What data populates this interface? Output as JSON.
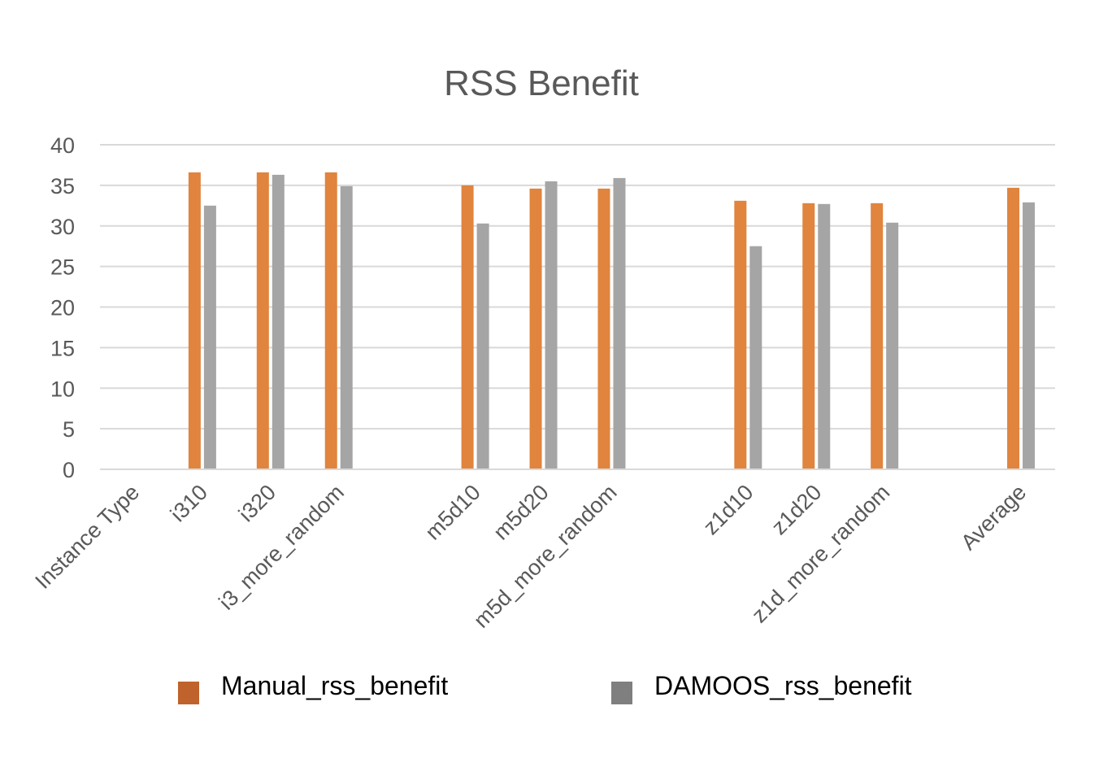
{
  "chart_data": {
    "type": "bar",
    "title": "RSS Benefit",
    "categories": [
      "Instance Type",
      "i310",
      "i320",
      "i3_more_random",
      "",
      "m5d10",
      "m5d20",
      "m5d_more_random",
      "",
      "z1d10",
      "z1d20",
      "z1d_more_random",
      "",
      "Average"
    ],
    "series": [
      {
        "name": "Manual_rss_benefit",
        "color": "#E0843E",
        "legend_color": "#C0622B",
        "values": [
          null,
          36.6,
          36.6,
          36.6,
          null,
          35.0,
          34.6,
          34.6,
          null,
          33.1,
          32.8,
          32.8,
          null,
          34.7
        ]
      },
      {
        "name": "DAMOOS_rss_benefit",
        "color": "#A5A5A5",
        "legend_color": "#7F7F7F",
        "values": [
          null,
          32.5,
          36.3,
          34.9,
          null,
          30.3,
          35.5,
          35.9,
          null,
          27.5,
          32.7,
          30.4,
          null,
          32.9
        ]
      }
    ],
    "ylim": [
      0,
      40
    ],
    "yticks": [
      0,
      5,
      10,
      15,
      20,
      25,
      30,
      35,
      40
    ],
    "xlabel": "",
    "ylabel": "",
    "grid": true,
    "legend_position": "bottom"
  }
}
